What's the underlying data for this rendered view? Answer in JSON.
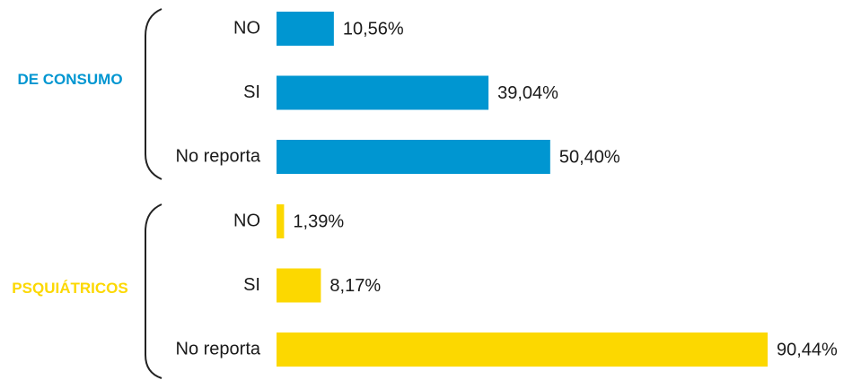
{
  "chart_data": {
    "type": "bar",
    "orientation": "horizontal",
    "categories": [
      "NO",
      "SI",
      "No reporta"
    ],
    "series": [
      {
        "name": "DE CONSUMO",
        "color": "#0096d1",
        "values": [
          10.56,
          39.04,
          50.4
        ],
        "value_labels": [
          "10,56%",
          "39,04%",
          "50,40%"
        ]
      },
      {
        "name": "PSQUIÁTRICOS",
        "color": "#fcd800",
        "values": [
          1.39,
          8.17,
          90.44
        ],
        "value_labels": [
          "1,39%",
          "8,17%",
          "90,44%"
        ]
      }
    ]
  }
}
